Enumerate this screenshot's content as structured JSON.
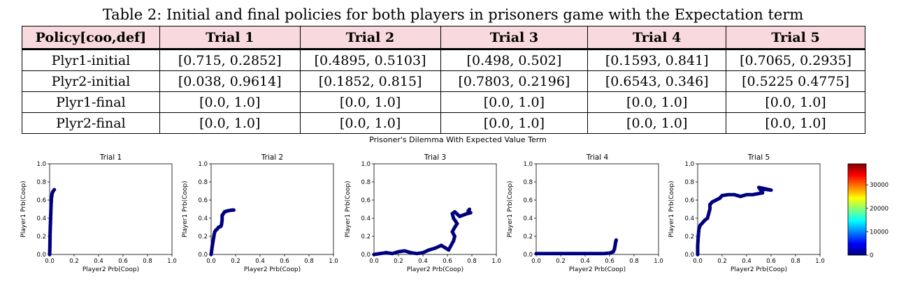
{
  "caption": "Table 2: Initial and final policies for both players in prisoners game with the Expectation term",
  "table": {
    "headers": [
      "Policy[coo,def]",
      "Trial 1",
      "Trial 2",
      "Trial 3",
      "Trial 4",
      "Trial 5"
    ],
    "rows": [
      [
        "Plyr1-initial",
        "[0.715, 0.2852]",
        "[0.4895, 0.5103]",
        "[0.498, 0.502]",
        "[0.1593, 0.841]",
        "[0.7065, 0.2935]"
      ],
      [
        "Plyr2-initial",
        "[0.038, 0.9614]",
        "[0.1852, 0.815]",
        "[0.7803, 0.2196]",
        "[0.6543, 0.346]",
        "[0.5225 0.4775]"
      ],
      [
        "Plyr1-final",
        "[0.0, 1.0]",
        "[0.0, 1.0]",
        "[0.0, 1.0]",
        "[0.0, 1.0]",
        "[0.0, 1.0]"
      ],
      [
        "Plyr2-final",
        "[0.0, 1.0]",
        "[0.0, 1.0]",
        "[0.0, 1.0]",
        "[0.0, 1.0]",
        "[0.0, 1.0]"
      ]
    ]
  },
  "figure": {
    "suptitle": "Prisoner's Dilemma With Expected Value Term",
    "colorbar": {
      "ticks": [
        "0",
        "10000",
        "20000",
        "30000"
      ],
      "colormap": [
        "#00007f",
        "#0000ff",
        "#007fff",
        "#00ffff",
        "#7fff7f",
        "#ffff00",
        "#ff7f00",
        "#ff0000",
        "#7f0000"
      ]
    }
  },
  "chart_data": [
    {
      "type": "scatter",
      "title": "Trial 1",
      "xlabel": "Player2 Prb(Coop)",
      "ylabel": "Player1 Prb(Coop)",
      "xlim": [
        0,
        1
      ],
      "ylim": [
        0,
        1
      ],
      "xticks": [
        "0.0",
        "0.2",
        "0.4",
        "0.6",
        "0.8",
        "1.0"
      ],
      "yticks": [
        "0.0",
        "0.2",
        "0.4",
        "0.6",
        "0.8",
        "1.0"
      ],
      "points": [
        [
          0.038,
          0.715
        ],
        [
          0.03,
          0.7
        ],
        [
          0.025,
          0.69
        ],
        [
          0.02,
          0.67
        ],
        [
          0.015,
          0.62
        ],
        [
          0.012,
          0.55
        ],
        [
          0.01,
          0.48
        ],
        [
          0.008,
          0.4
        ],
        [
          0.006,
          0.32
        ],
        [
          0.004,
          0.24
        ],
        [
          0.003,
          0.16
        ],
        [
          0.002,
          0.08
        ],
        [
          0.0,
          0.0
        ]
      ]
    },
    {
      "type": "scatter",
      "title": "Trial 2",
      "xlabel": "Player2 Prb(Coop)",
      "ylabel": "Player1 Prb(Coop)",
      "xlim": [
        0,
        1
      ],
      "ylim": [
        0,
        1
      ],
      "xticks": [
        "0.0",
        "0.2",
        "0.4",
        "0.6",
        "0.8",
        "1.0"
      ],
      "yticks": [
        "0.0",
        "0.2",
        "0.4",
        "0.6",
        "0.8",
        "1.0"
      ],
      "points": [
        [
          0.185,
          0.49
        ],
        [
          0.17,
          0.49
        ],
        [
          0.15,
          0.485
        ],
        [
          0.13,
          0.48
        ],
        [
          0.11,
          0.47
        ],
        [
          0.1,
          0.45
        ],
        [
          0.09,
          0.43
        ],
        [
          0.09,
          0.38
        ],
        [
          0.085,
          0.33
        ],
        [
          0.08,
          0.31
        ],
        [
          0.06,
          0.3
        ],
        [
          0.05,
          0.28
        ],
        [
          0.04,
          0.27
        ],
        [
          0.03,
          0.25
        ],
        [
          0.025,
          0.22
        ],
        [
          0.02,
          0.18
        ],
        [
          0.015,
          0.14
        ],
        [
          0.01,
          0.1
        ],
        [
          0.006,
          0.06
        ],
        [
          0.0,
          0.0
        ]
      ]
    },
    {
      "type": "scatter",
      "title": "Trial 3",
      "xlabel": "Player2 Prb(Coop)",
      "ylabel": "Player1 Prb(Coop)",
      "xlim": [
        0,
        1
      ],
      "ylim": [
        0,
        1
      ],
      "xticks": [
        "0.0",
        "0.2",
        "0.4",
        "0.6",
        "0.8",
        "1.0"
      ],
      "yticks": [
        "0.0",
        "0.2",
        "0.4",
        "0.6",
        "0.8",
        "1.0"
      ],
      "points": [
        [
          0.78,
          0.498
        ],
        [
          0.77,
          0.48
        ],
        [
          0.79,
          0.46
        ],
        [
          0.76,
          0.45
        ],
        [
          0.7,
          0.42
        ],
        [
          0.66,
          0.47
        ],
        [
          0.64,
          0.45
        ],
        [
          0.65,
          0.4
        ],
        [
          0.68,
          0.34
        ],
        [
          0.66,
          0.3
        ],
        [
          0.64,
          0.25
        ],
        [
          0.66,
          0.2
        ],
        [
          0.65,
          0.15
        ],
        [
          0.63,
          0.1
        ],
        [
          0.61,
          0.05
        ],
        [
          0.55,
          0.1
        ],
        [
          0.5,
          0.07
        ],
        [
          0.45,
          0.05
        ],
        [
          0.4,
          0.02
        ],
        [
          0.35,
          0.01
        ],
        [
          0.3,
          0.02
        ],
        [
          0.25,
          0.04
        ],
        [
          0.2,
          0.03
        ],
        [
          0.15,
          0.01
        ],
        [
          0.1,
          0.02
        ],
        [
          0.05,
          0.01
        ],
        [
          0.0,
          0.0
        ]
      ]
    },
    {
      "type": "scatter",
      "title": "Trial 4",
      "xlabel": "Player2 Prb(Coop)",
      "ylabel": "Player1 Prb(Coop)",
      "xlim": [
        0,
        1
      ],
      "ylim": [
        0,
        1
      ],
      "xticks": [
        "0.0",
        "0.2",
        "0.4",
        "0.6",
        "0.8",
        "1.0"
      ],
      "yticks": [
        "0.0",
        "0.2",
        "0.4",
        "0.6",
        "0.8",
        "1.0"
      ],
      "points": [
        [
          0.654,
          0.159
        ],
        [
          0.65,
          0.14
        ],
        [
          0.645,
          0.1
        ],
        [
          0.64,
          0.06
        ],
        [
          0.63,
          0.03
        ],
        [
          0.6,
          0.015
        ],
        [
          0.55,
          0.01
        ],
        [
          0.5,
          0.01
        ],
        [
          0.45,
          0.01
        ],
        [
          0.4,
          0.01
        ],
        [
          0.35,
          0.01
        ],
        [
          0.3,
          0.01
        ],
        [
          0.25,
          0.01
        ],
        [
          0.2,
          0.01
        ],
        [
          0.15,
          0.01
        ],
        [
          0.1,
          0.01
        ],
        [
          0.05,
          0.01
        ],
        [
          0.0,
          0.01
        ]
      ]
    },
    {
      "type": "scatter",
      "title": "Trial 5",
      "xlabel": "Player2 Prb(Coop)",
      "ylabel": "Player1 Prb(Coop)",
      "xlim": [
        0,
        1
      ],
      "ylim": [
        0,
        1
      ],
      "xticks": [
        "0.0",
        "0.2",
        "0.4",
        "0.6",
        "0.8",
        "1.0"
      ],
      "yticks": [
        "0.0",
        "0.2",
        "0.4",
        "0.6",
        "0.8",
        "1.0"
      ],
      "points": [
        [
          0.5225,
          0.7065
        ],
        [
          0.55,
          0.72
        ],
        [
          0.6,
          0.71
        ],
        [
          0.5,
          0.74
        ],
        [
          0.53,
          0.68
        ],
        [
          0.45,
          0.66
        ],
        [
          0.4,
          0.66
        ],
        [
          0.35,
          0.64
        ],
        [
          0.3,
          0.66
        ],
        [
          0.25,
          0.66
        ],
        [
          0.2,
          0.65
        ],
        [
          0.18,
          0.62
        ],
        [
          0.15,
          0.6
        ],
        [
          0.12,
          0.58
        ],
        [
          0.1,
          0.55
        ],
        [
          0.1,
          0.5
        ],
        [
          0.09,
          0.45
        ],
        [
          0.08,
          0.4
        ],
        [
          0.06,
          0.38
        ],
        [
          0.04,
          0.35
        ],
        [
          0.02,
          0.32
        ],
        [
          0.01,
          0.28
        ],
        [
          0.005,
          0.2
        ],
        [
          0.0,
          0.1
        ],
        [
          0.0,
          0.0
        ]
      ]
    }
  ]
}
